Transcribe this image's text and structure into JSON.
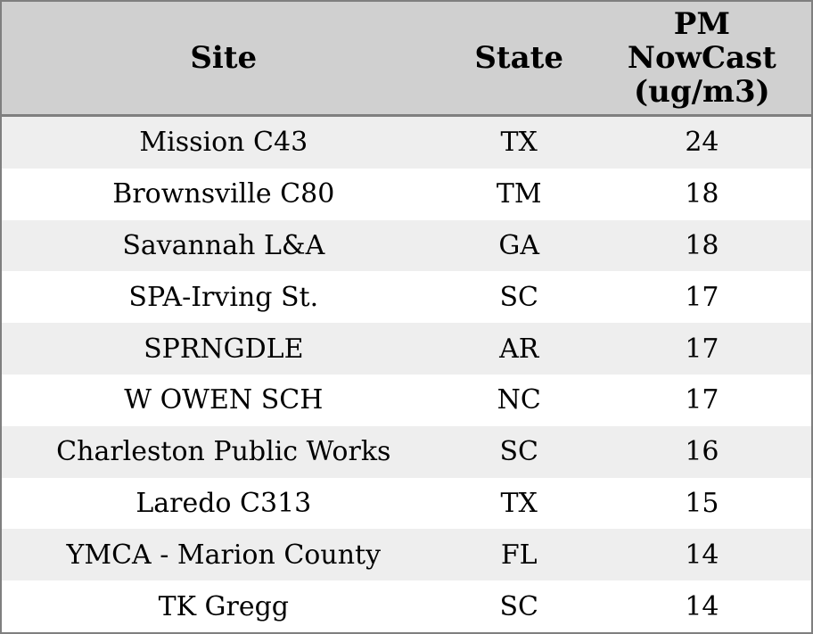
{
  "colors": {
    "header_bg": "#d0d0d0",
    "row_alt_bg": "#eeeeee",
    "row_bg": "#ffffff",
    "border": "#7f7f7f",
    "text": "#000000"
  },
  "table": {
    "headers": {
      "site": "Site",
      "state": "State",
      "pm_nowcast": "PM\nNowCast\n(ug/m3)"
    },
    "rows": [
      {
        "site": "Mission C43",
        "state": "TX",
        "value": "24"
      },
      {
        "site": "Brownsville C80",
        "state": "TM",
        "value": "18"
      },
      {
        "site": "Savannah L&A",
        "state": "GA",
        "value": "18"
      },
      {
        "site": "SPA-Irving St.",
        "state": "SC",
        "value": "17"
      },
      {
        "site": "SPRNGDLE",
        "state": "AR",
        "value": "17"
      },
      {
        "site": "W OWEN SCH",
        "state": "NC",
        "value": "17"
      },
      {
        "site": "Charleston Public Works",
        "state": "SC",
        "value": "16"
      },
      {
        "site": "Laredo C313",
        "state": "TX",
        "value": "15"
      },
      {
        "site": "YMCA - Marion County",
        "state": "FL",
        "value": "14"
      },
      {
        "site": "TK Gregg",
        "state": "SC",
        "value": "14"
      }
    ]
  },
  "chart_data": {
    "type": "table",
    "columns": [
      "Site",
      "State",
      "PM NowCast (ug/m3)"
    ],
    "rows": [
      [
        "Mission C43",
        "TX",
        24
      ],
      [
        "Brownsville C80",
        "TM",
        18
      ],
      [
        "Savannah L&A",
        "GA",
        18
      ],
      [
        "SPA-Irving St.",
        "SC",
        17
      ],
      [
        "SPRNGDLE",
        "AR",
        17
      ],
      [
        "W OWEN SCH",
        "NC",
        17
      ],
      [
        "Charleston Public Works",
        "SC",
        16
      ],
      [
        "Laredo C313",
        "TX",
        15
      ],
      [
        "YMCA - Marion County",
        "FL",
        14
      ],
      [
        "TK Gregg",
        "SC",
        14
      ]
    ],
    "legend": false,
    "grid": false
  }
}
